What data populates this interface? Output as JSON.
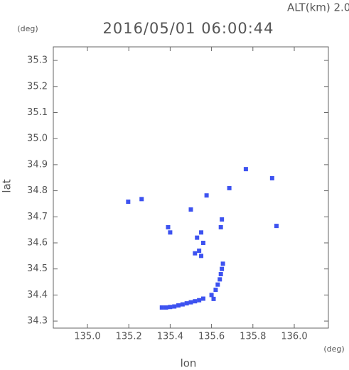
{
  "chart_data": {
    "type": "scatter",
    "title": "2016/05/01 06:00:44",
    "subtitle": "ALT(km) 2.0",
    "x_label": "lon",
    "y_label": "lat",
    "x_unit": "(deg)",
    "y_unit": "(deg)",
    "x": [
      135.36,
      135.38,
      135.4,
      135.42,
      135.44,
      135.46,
      135.48,
      135.5,
      135.52,
      135.54,
      135.56,
      135.61,
      135.6,
      135.62,
      135.63,
      135.64,
      135.645,
      135.65,
      135.655,
      135.52,
      135.54,
      135.55,
      135.56,
      135.53,
      135.55,
      135.645,
      135.65,
      135.197,
      135.262,
      135.39,
      135.4,
      135.766,
      135.914,
      135.893,
      135.686,
      135.576,
      135.5
    ],
    "values": [
      34.352,
      34.352,
      34.354,
      34.356,
      34.36,
      34.364,
      34.368,
      34.372,
      34.376,
      34.38,
      34.386,
      34.385,
      34.4,
      34.42,
      34.44,
      34.46,
      34.48,
      34.5,
      34.52,
      34.56,
      34.57,
      34.55,
      34.6,
      34.62,
      34.64,
      34.66,
      34.69,
      34.758,
      34.768,
      34.66,
      34.64,
      34.883,
      34.665,
      34.848,
      34.81,
      34.782,
      34.728
    ],
    "color": "#3d52f0",
    "xlim": [
      134.835,
      136.165
    ],
    "ylim": [
      34.273,
      35.352
    ],
    "xticks": [
      {
        "value": 135.0,
        "label": "135.0"
      },
      135.2,
      135.4,
      135.6,
      135.8,
      {
        "value": 136.0,
        "label": "136.0"
      }
    ],
    "yticks": [
      34.3,
      34.4,
      34.5,
      34.6,
      34.7,
      34.8,
      34.9,
      {
        "value": 35.0,
        "label": "35.0"
      },
      35.1,
      35.2,
      35.3
    ]
  }
}
